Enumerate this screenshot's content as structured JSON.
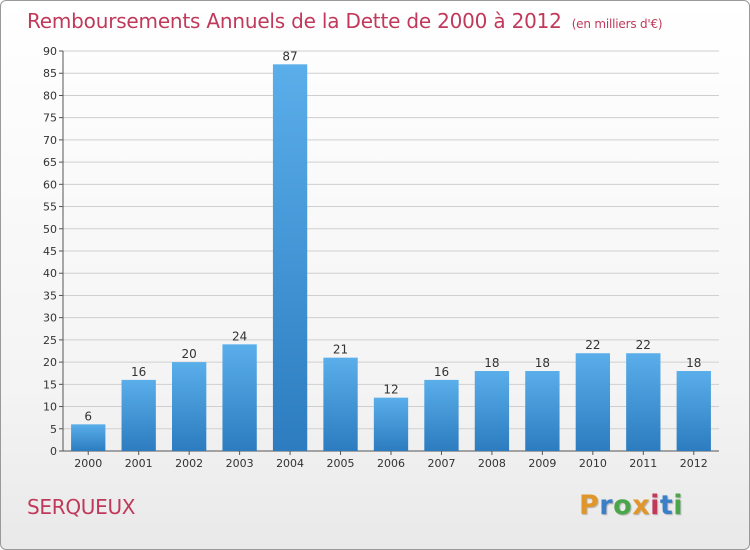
{
  "header": {
    "title": "Remboursements Annuels de la Dette de 2000 à 2012",
    "subtitle": "(en milliers d'€)"
  },
  "footer": {
    "commune": "SERQUEUX",
    "logo_text": "Proxiti",
    "logo_colors": [
      "#e0962a",
      "#3a7fc8",
      "#49a64a",
      "#e0962a",
      "#c0395a",
      "#3a7fc8",
      "#49a64a"
    ]
  },
  "colors": {
    "title": "#c0395a",
    "bar_light": "#5aaeea",
    "bar_dark": "#2c7cbf",
    "grid": "#cfcfcf"
  },
  "chart_data": {
    "type": "bar",
    "title": "Remboursements Annuels de la Dette de 2000 à 2012",
    "subtitle": "(en milliers d'€)",
    "categories": [
      "2000",
      "2001",
      "2002",
      "2003",
      "2004",
      "2005",
      "2006",
      "2007",
      "2008",
      "2009",
      "2010",
      "2011",
      "2012"
    ],
    "values": [
      6,
      16,
      20,
      24,
      87,
      21,
      12,
      16,
      18,
      18,
      22,
      22,
      18
    ],
    "ylim": [
      0,
      90
    ],
    "ytick_step": 5,
    "grid": true,
    "legend": "none"
  }
}
